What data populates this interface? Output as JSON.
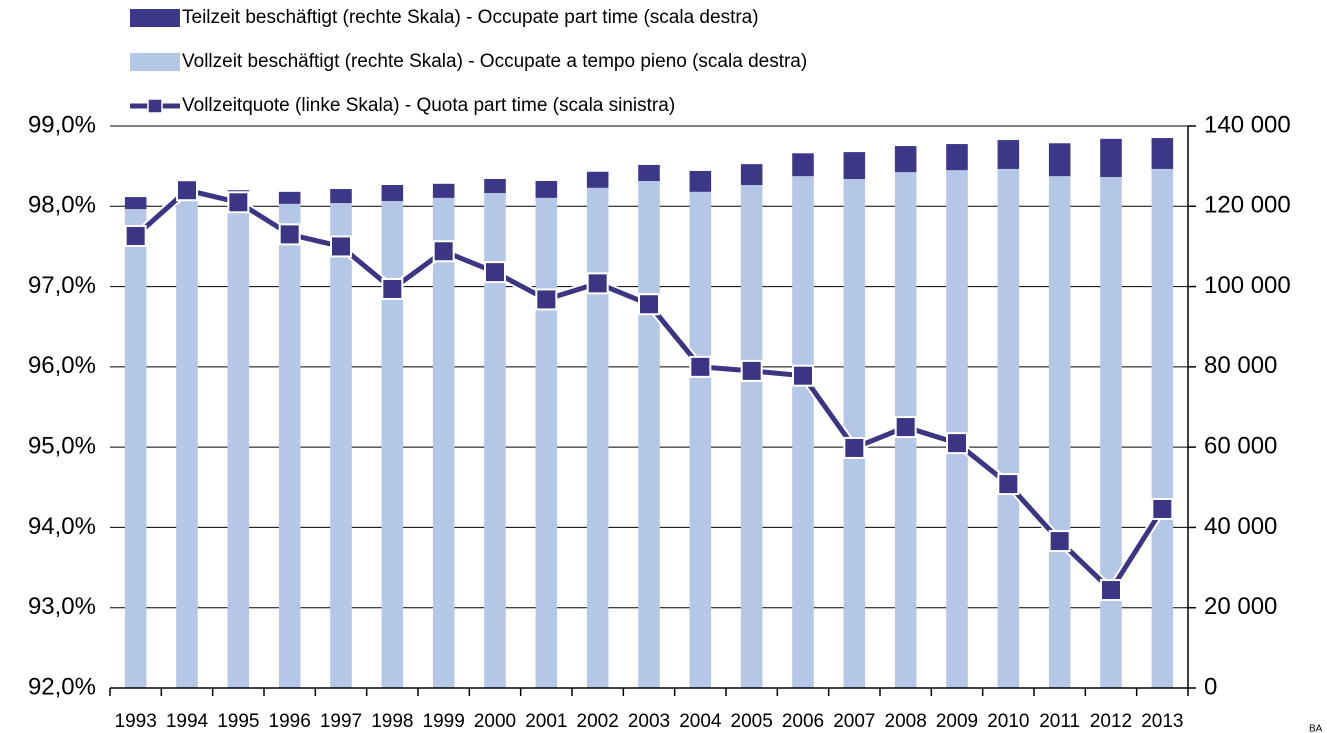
{
  "chart_data": {
    "type": "bar",
    "categories": [
      "1993",
      "1994",
      "1995",
      "1996",
      "1997",
      "1998",
      "1999",
      "2000",
      "2001",
      "2002",
      "2003",
      "2004",
      "2005",
      "2006",
      "2007",
      "2008",
      "2009",
      "2010",
      "2011",
      "2012",
      "2013"
    ],
    "series": [
      {
        "name": "Teilzeit beschäftigt (rechte Skala) - Occupate part time (scala destra)",
        "type": "bar",
        "axis": "y2",
        "color": "#3d3789",
        "values": [
          3000,
          500,
          700,
          3000,
          3500,
          4000,
          3500,
          3500,
          4200,
          4000,
          4000,
          5200,
          5200,
          5700,
          6700,
          6500,
          6500,
          7200,
          8200,
          9500,
          7700
        ]
      },
      {
        "name": "Vollzeit beschäftigt (rechte Skala) - Occupate a tempo pieno (scala destra)",
        "type": "bar",
        "axis": "y2",
        "color": "#b4c7e7",
        "values": [
          119300,
          125300,
          123300,
          120600,
          120800,
          121300,
          122100,
          123300,
          122100,
          124600,
          126300,
          123600,
          125300,
          127500,
          126800,
          128500,
          129000,
          129300,
          127500,
          127300,
          129300
        ]
      },
      {
        "name": "Vollzeitquote (linke Skala) - Quota part time (scala sinistra)",
        "type": "line",
        "axis": "y",
        "color": "#3b3584",
        "values": [
          97.63,
          98.2,
          98.05,
          97.65,
          97.5,
          96.97,
          97.44,
          97.18,
          96.84,
          97.04,
          96.78,
          96.0,
          95.95,
          95.89,
          94.99,
          95.25,
          95.05,
          94.54,
          93.83,
          93.22,
          94.23
        ]
      }
    ],
    "stack_order": [
      1,
      0
    ],
    "ylim": [
      92,
      99
    ],
    "yticks": [
      {
        "value": 92,
        "label": "92,0%"
      },
      {
        "value": 93,
        "label": "93,0%"
      },
      {
        "value": 94,
        "label": "94,0%"
      },
      {
        "value": 95,
        "label": "95,0%"
      },
      {
        "value": 96,
        "label": "96,0%"
      },
      {
        "value": 97,
        "label": "97,0%"
      },
      {
        "value": 98,
        "label": "98,0%"
      },
      {
        "value": 99,
        "label": "99,0%"
      }
    ],
    "y2lim": [
      0,
      140000
    ],
    "y2ticks": [
      0,
      {
        "value": 20000,
        "label": "20 000"
      },
      {
        "value": 40000,
        "label": "40 000"
      },
      {
        "value": 60000,
        "label": "60 000"
      },
      {
        "value": 80000,
        "label": "80 000"
      },
      {
        "value": 100000,
        "label": "100 000"
      },
      {
        "value": 120000,
        "label": "120 000"
      },
      {
        "value": 140000,
        "label": "140 000"
      }
    ],
    "grid": true,
    "legend": "top-left",
    "source_mark": "BA"
  }
}
